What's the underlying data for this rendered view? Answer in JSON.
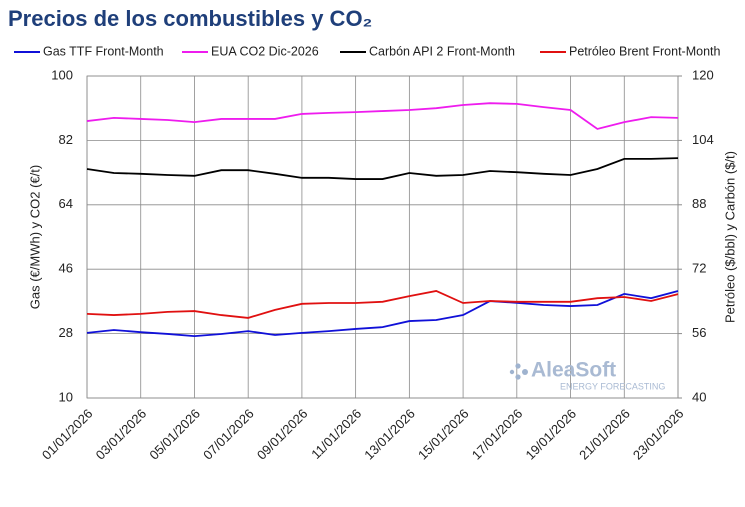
{
  "chart_data": {
    "type": "line",
    "title": "Precios de los combustibles y CO₂",
    "y_label": "Gas (€/MWh) y CO2 (€/t)",
    "y2_label": "Petróleo ($/bbl) y Carbón ($/t)",
    "watermark": "AleaSoft",
    "watermark_subtitle": "ENERGY FORECASTING",
    "categories": [
      "01/01/2026",
      null,
      "03/01/2026",
      null,
      "05/01/2026",
      null,
      "07/01/2026",
      null,
      "09/01/2026",
      null,
      "11/01/2026",
      null,
      "13/01/2026",
      null,
      "15/01/2026",
      null,
      "17/01/2026",
      null,
      "19/01/2026",
      null,
      "21/01/2026",
      null,
      "23/01/2026"
    ],
    "ylim": [
      10,
      100
    ],
    "yticks": [
      10,
      28,
      46,
      64,
      82,
      100
    ],
    "y2lim": [
      40,
      120
    ],
    "y2ticks": [
      40,
      56,
      72,
      88,
      104,
      120
    ],
    "grid": true,
    "legend": "top",
    "series": [
      {
        "name": "Gas TTF Front-Month",
        "color": "#1010d8",
        "values": [
          28.2,
          29.0,
          28.4,
          27.9,
          27.3,
          27.9,
          28.7,
          27.6,
          28.2,
          28.7,
          29.3,
          29.8,
          31.5,
          31.8,
          33.2,
          37.1,
          36.6,
          36.0,
          35.7,
          36.0,
          39.1,
          37.9,
          39.9
        ]
      },
      {
        "name": "EUA CO2 Dic-2026",
        "color": "#ee1cee",
        "values": [
          87.4,
          88.3,
          88.0,
          87.7,
          87.1,
          88.0,
          88.0,
          88.0,
          89.4,
          89.7,
          89.9,
          90.2,
          90.5,
          91.0,
          91.9,
          92.4,
          92.2,
          91.3,
          90.5,
          85.2,
          87.1,
          88.5,
          88.3
        ]
      },
      {
        "name": "Carbón API 2 Front-Month",
        "color": "#000000",
        "axis": "y2",
        "values": [
          96.9,
          95.9,
          95.7,
          95.4,
          95.2,
          96.6,
          96.6,
          95.7,
          94.7,
          94.7,
          94.4,
          94.4,
          95.9,
          95.2,
          95.4,
          96.4,
          96.1,
          95.7,
          95.4,
          96.9,
          99.4,
          99.4,
          99.6
        ]
      },
      {
        "name": "Petróleo Brent Front-Month",
        "color": "#e01010",
        "axis": "y2",
        "values": [
          60.9,
          60.6,
          60.9,
          61.4,
          61.6,
          60.6,
          59.9,
          61.9,
          63.4,
          63.6,
          63.6,
          63.9,
          65.3,
          66.6,
          63.6,
          64.1,
          63.9,
          63.9,
          63.9,
          64.8,
          65.1,
          64.1,
          65.8
        ]
      }
    ]
  }
}
